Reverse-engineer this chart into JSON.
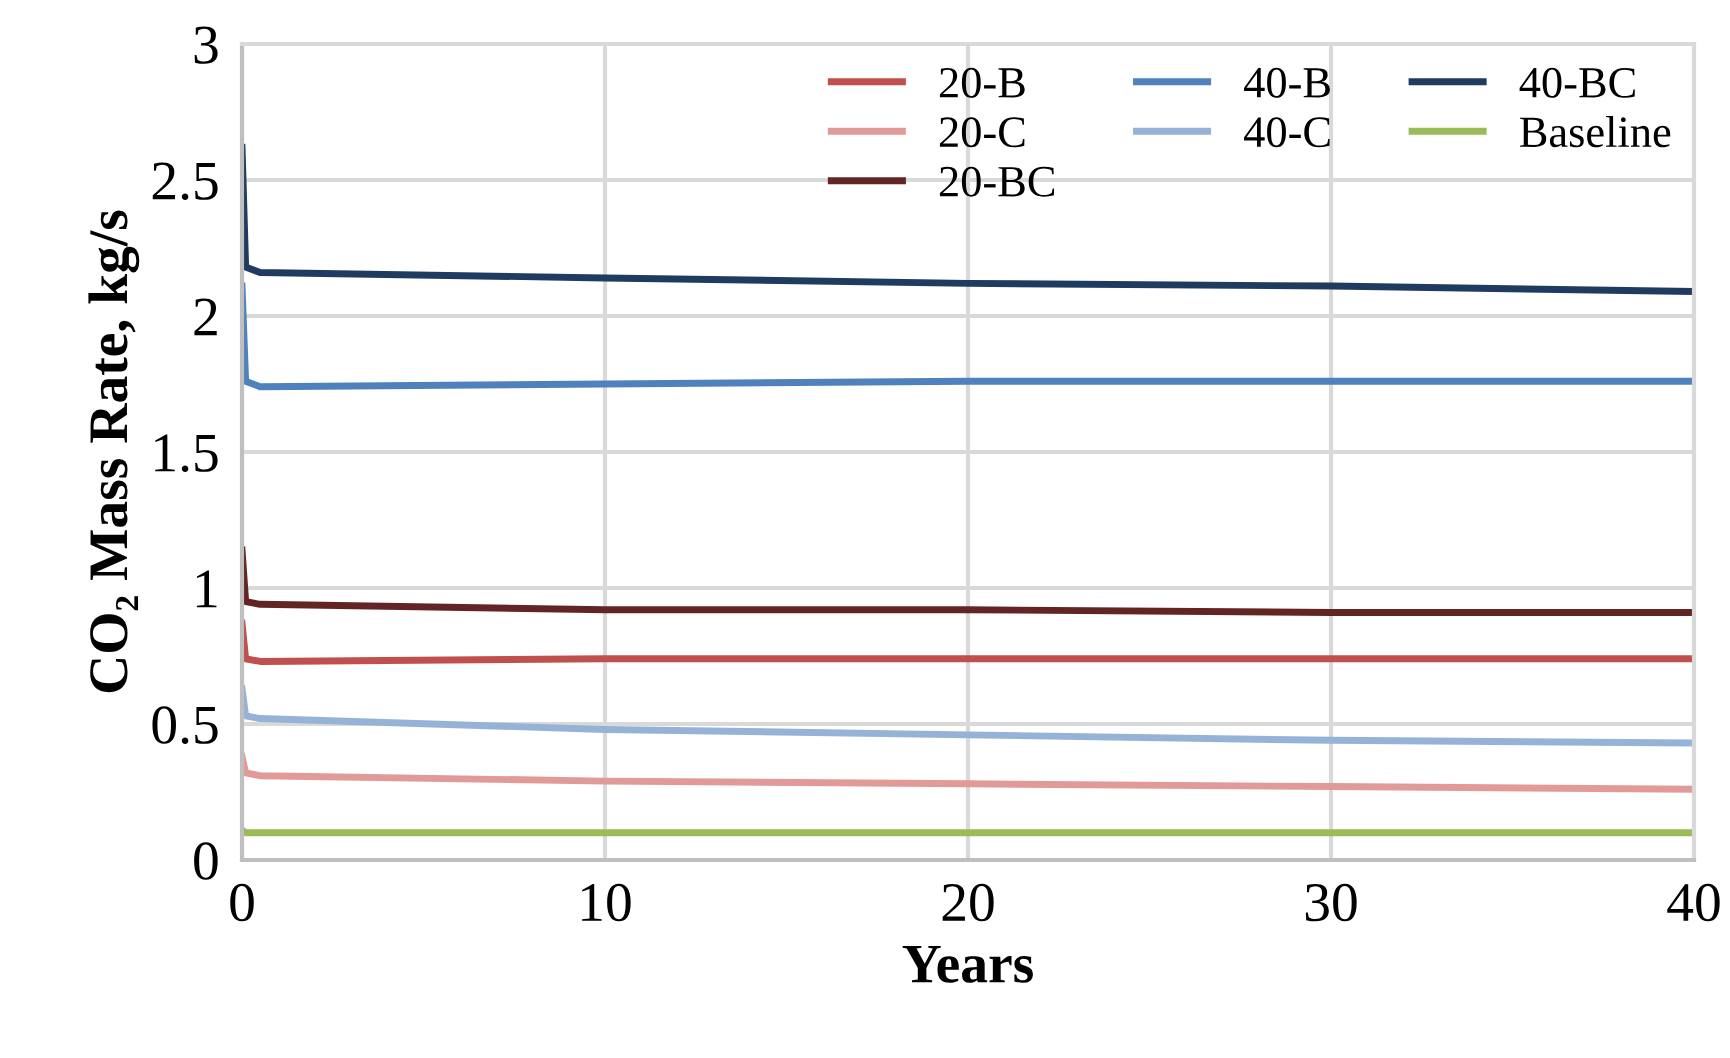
{
  "chart_data": {
    "type": "line",
    "xlabel": "Years",
    "ylabel": "CO₂ Mass Rate, kg/s",
    "xlim": [
      0,
      40
    ],
    "xticks": [
      0,
      10,
      20,
      30,
      40
    ],
    "ylim": [
      0,
      3
    ],
    "yticks": [
      0,
      0.5,
      1,
      1.5,
      2,
      2.5,
      3
    ],
    "grid": true,
    "legend": "top right",
    "marker": "none",
    "line_style": "solid",
    "series": [
      {
        "name": "20-B",
        "color": "#c0504d",
        "x": [
          0,
          0.1,
          0.5,
          10,
          20,
          30,
          40
        ],
        "values": [
          0.87,
          0.74,
          0.73,
          0.74,
          0.74,
          0.74,
          0.74
        ]
      },
      {
        "name": "20-C",
        "color": "#e29a98",
        "x": [
          0,
          0.1,
          0.5,
          10,
          20,
          30,
          40
        ],
        "values": [
          0.38,
          0.32,
          0.31,
          0.29,
          0.28,
          0.27,
          0.26
        ]
      },
      {
        "name": "20-BC",
        "color": "#632523",
        "x": [
          0,
          0.1,
          0.5,
          10,
          20,
          30,
          40
        ],
        "values": [
          1.14,
          0.95,
          0.94,
          0.92,
          0.92,
          0.91,
          0.91
        ]
      },
      {
        "name": "40-B",
        "color": "#4f81bd",
        "x": [
          0,
          0.1,
          0.5,
          10,
          20,
          30,
          40
        ],
        "values": [
          2.11,
          1.76,
          1.74,
          1.75,
          1.76,
          1.76,
          1.76
        ]
      },
      {
        "name": "40-C",
        "color": "#95b3d7",
        "x": [
          0,
          0.1,
          0.5,
          10,
          20,
          30,
          40
        ],
        "values": [
          0.63,
          0.53,
          0.52,
          0.48,
          0.46,
          0.44,
          0.43
        ]
      },
      {
        "name": "40-BC",
        "color": "#1f3b5f",
        "x": [
          0,
          0.1,
          0.5,
          10,
          20,
          30,
          40
        ],
        "values": [
          2.62,
          2.18,
          2.16,
          2.14,
          2.12,
          2.11,
          2.09
        ]
      },
      {
        "name": "Baseline",
        "color": "#9bbb59",
        "x": [
          0,
          0.1,
          0.5,
          10,
          20,
          30,
          40
        ],
        "values": [
          0.11,
          0.1,
          0.1,
          0.1,
          0.1,
          0.1,
          0.1
        ]
      }
    ]
  }
}
